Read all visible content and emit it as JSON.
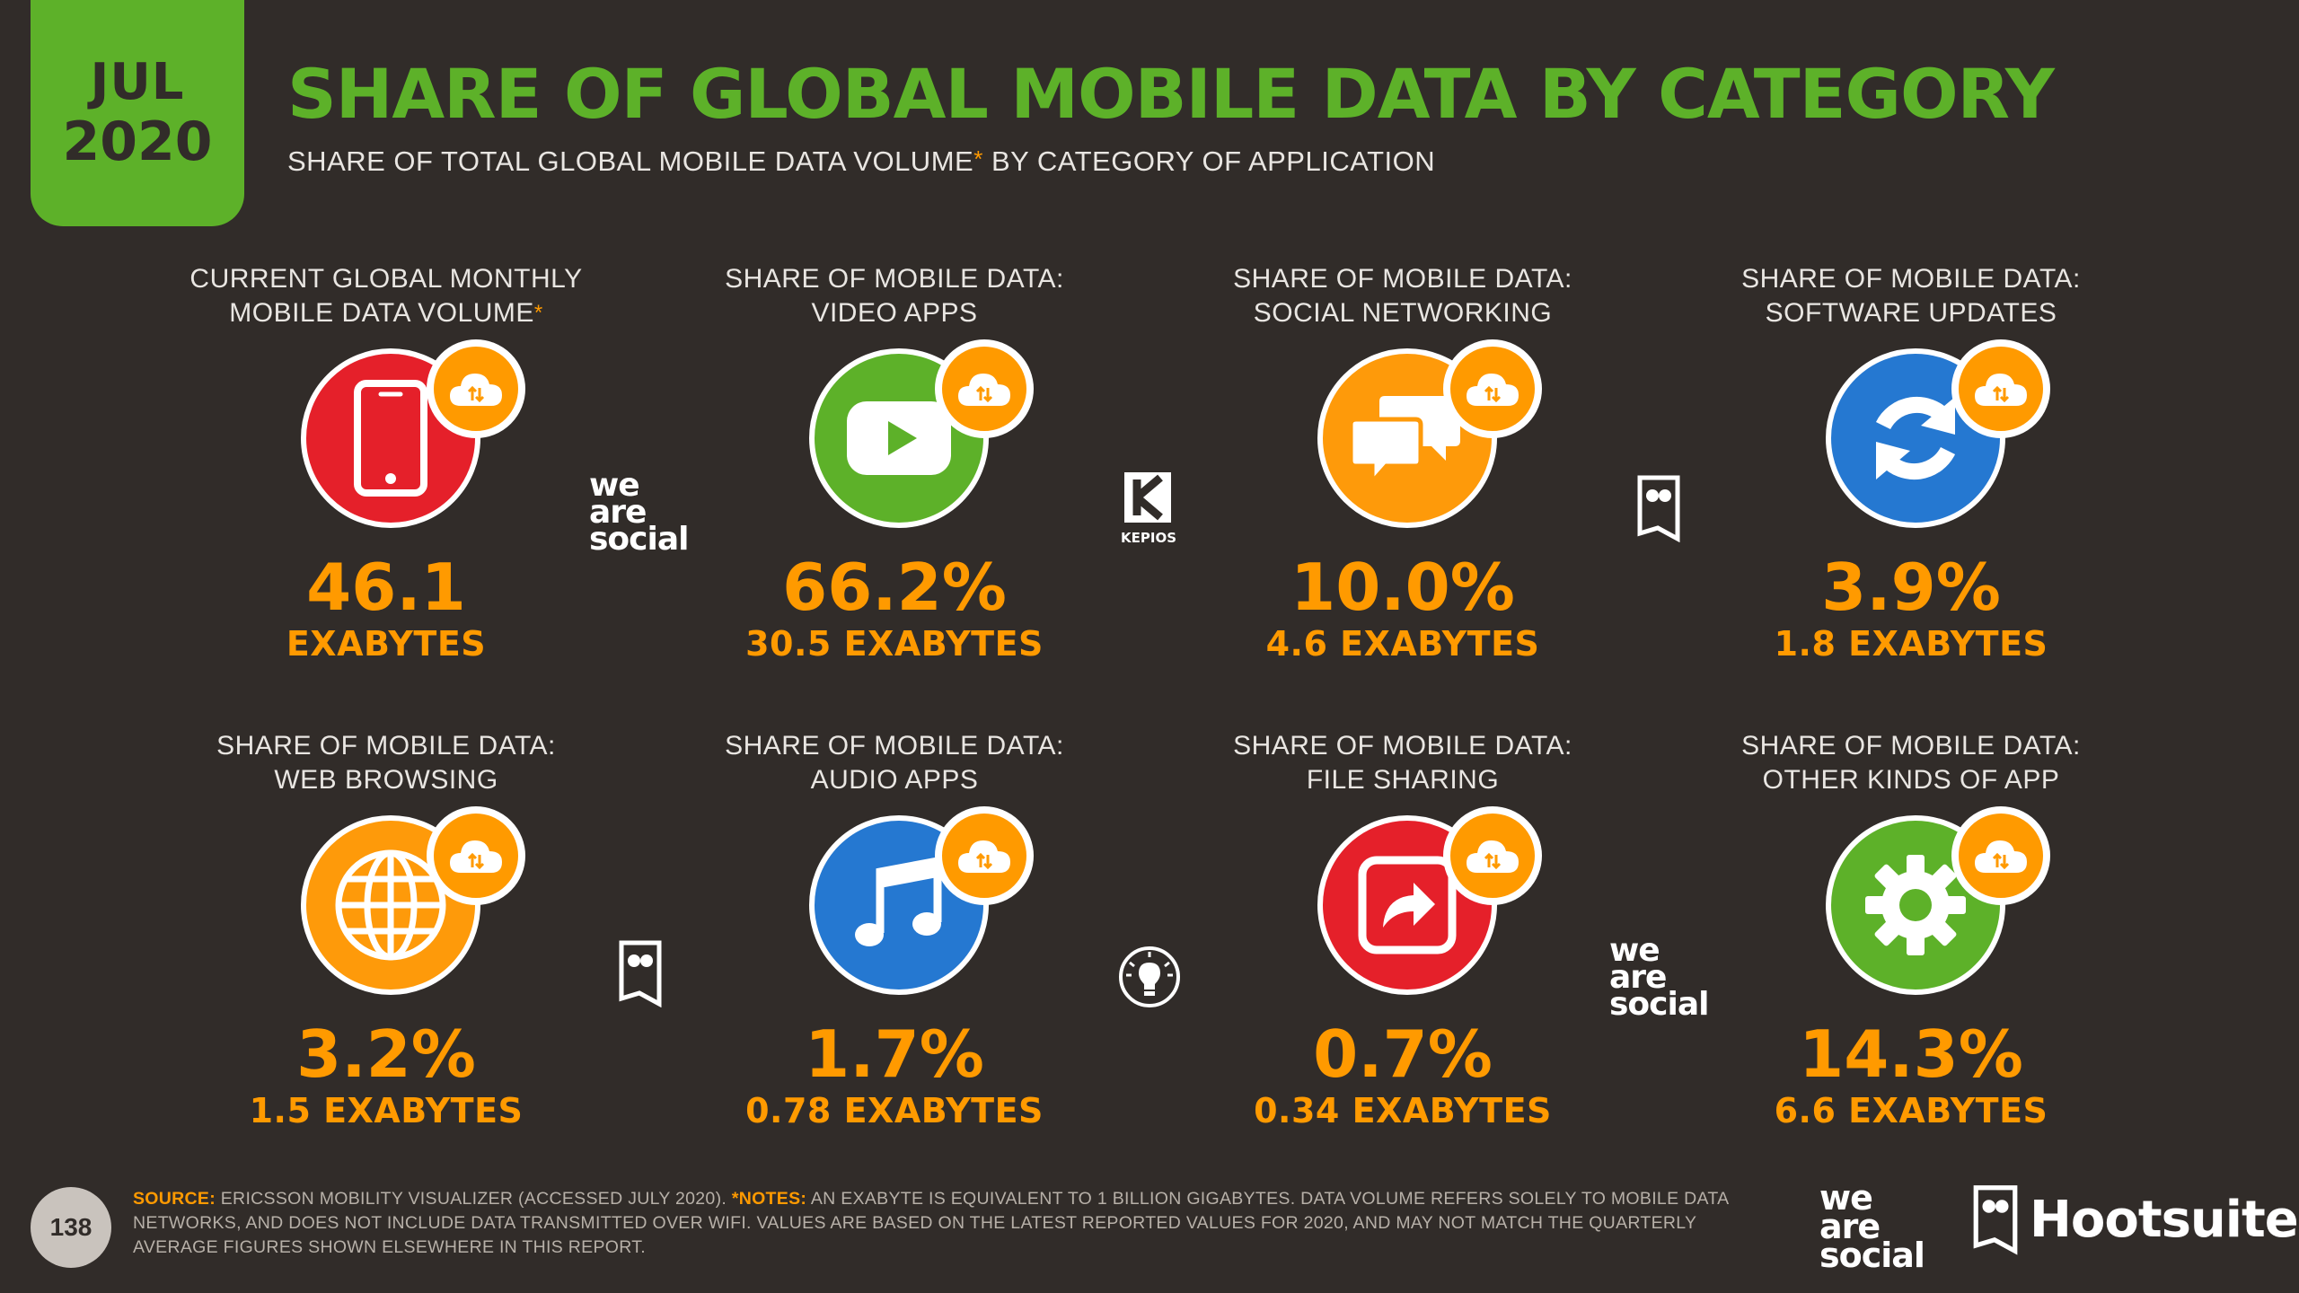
{
  "header": {
    "month": "JUL",
    "year": "2020",
    "title": "SHARE OF GLOBAL MOBILE DATA BY CATEGORY",
    "subtitle_a": "SHARE OF TOTAL GLOBAL MOBILE DATA VOLUME",
    "subtitle_ast": "*",
    "subtitle_b": " BY CATEGORY OF APPLICATION"
  },
  "colors": {
    "background": "#312c29",
    "accent_green": "#5db129",
    "accent_orange": "#ff9a00",
    "red": "#e5202a",
    "blue": "#2578d1",
    "yellow_orange": "#fda30f"
  },
  "stats": [
    {
      "label1": "CURRENT GLOBAL MONTHLY",
      "label2": "MOBILE DATA VOLUME",
      "asterisk": "*",
      "value": "46.1",
      "unit": "EXABYTES",
      "icon": "smartphone-icon",
      "color": "#e5202a"
    },
    {
      "label1": "SHARE OF MOBILE DATA:",
      "label2": "VIDEO APPS",
      "value": "66.2%",
      "unit": "30.5 EXABYTES",
      "icon": "play-icon",
      "color": "#5db129"
    },
    {
      "label1": "SHARE OF MOBILE DATA:",
      "label2": "SOCIAL NETWORKING",
      "value": "10.0%",
      "unit": "4.6 EXABYTES",
      "icon": "chat-bubbles-icon",
      "color": "#fe9a0a"
    },
    {
      "label1": "SHARE OF MOBILE DATA:",
      "label2": "SOFTWARE UPDATES",
      "value": "3.9%",
      "unit": "1.8 EXABYTES",
      "icon": "refresh-icon",
      "color": "#2578d1"
    },
    {
      "label1": "SHARE OF MOBILE DATA:",
      "label2": "WEB BROWSING",
      "value": "3.2%",
      "unit": "1.5 EXABYTES",
      "icon": "globe-icon",
      "color": "#fe9a0a"
    },
    {
      "label1": "SHARE OF MOBILE DATA:",
      "label2": "AUDIO APPS",
      "value": "1.7%",
      "unit": "0.78 EXABYTES",
      "icon": "music-note-icon",
      "color": "#2578d1"
    },
    {
      "label1": "SHARE OF MOBILE DATA:",
      "label2": "FILE SHARING",
      "value": "0.7%",
      "unit": "0.34 EXABYTES",
      "icon": "share-arrow-icon",
      "color": "#e5202a"
    },
    {
      "label1": "SHARE OF MOBILE DATA:",
      "label2": "OTHER KINDS OF APP",
      "value": "14.3%",
      "unit": "6.6 EXABYTES",
      "icon": "gear-icon",
      "color": "#5db129"
    }
  ],
  "brands": {
    "we": "we",
    "are": "are",
    "social": "social",
    "kepios": "KEPIOS",
    "hootsuite": "Hootsuite",
    "trademark": "®"
  },
  "footer": {
    "page_number": "138",
    "source_label": "SOURCE:",
    "source_text": " ERICSSON MOBILITY VISUALIZER (ACCESSED JULY 2020). ",
    "notes_label": "*NOTES:",
    "notes_text": " AN EXABYTE IS EQUIVALENT TO 1 BILLION GIGABYTES. DATA VOLUME REFERS SOLELY TO MOBILE DATA NETWORKS, AND DOES NOT INCLUDE DATA TRANSMITTED OVER WIFI. VALUES ARE BASED ON THE LATEST REPORTED VALUES FOR 2020, AND MAY NOT MATCH THE QUARTERLY AVERAGE FIGURES SHOWN ELSEWHERE IN THIS REPORT."
  }
}
